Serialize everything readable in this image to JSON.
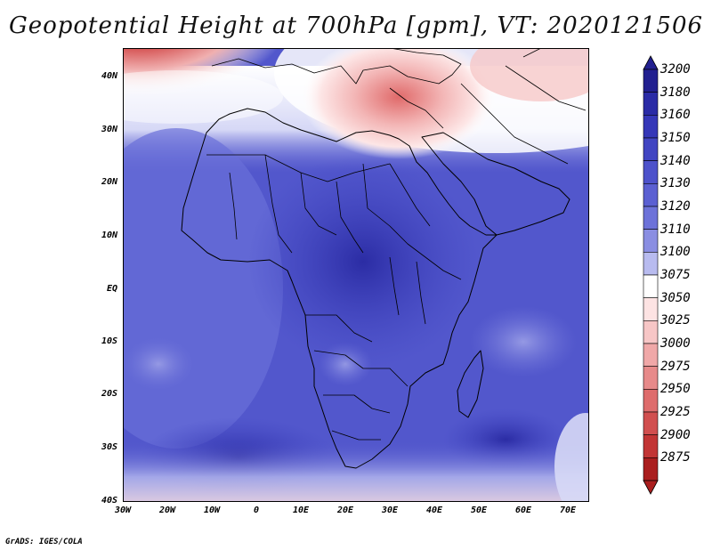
{
  "title": "Geopotential Height at 700hPa [gpm], VT: 2020121506",
  "footer": "GrADS: IGES/COLA",
  "map": {
    "variable": "Geopotential Height",
    "level": "700hPa",
    "units": "gpm",
    "valid_time": "2020121506",
    "lon_range": [
      -30,
      75
    ],
    "lat_range": [
      -40,
      45
    ],
    "x_ticks": [
      "30W",
      "20W",
      "10W",
      "0",
      "10E",
      "20E",
      "30E",
      "40E",
      "50E",
      "60E",
      "70E"
    ],
    "y_ticks": [
      "40N",
      "30N",
      "20N",
      "10N",
      "EQ",
      "10S",
      "20S",
      "30S",
      "40S"
    ]
  },
  "colorbar": {
    "labels": [
      "3200",
      "3180",
      "3160",
      "3150",
      "3140",
      "3130",
      "3120",
      "3110",
      "3100",
      "3075",
      "3050",
      "3025",
      "3000",
      "2975",
      "2950",
      "2925",
      "2900",
      "2875"
    ],
    "colors": [
      "#222090",
      "#2a2ba6",
      "#3537b8",
      "#4145c2",
      "#4d52cb",
      "#5b60d2",
      "#6d72d9",
      "#8a8ee2",
      "#b8bbef",
      "#ffffff",
      "#fde3e3",
      "#f7c6c6",
      "#f0a8a8",
      "#e78a8a",
      "#de6c6c",
      "#d14f4f",
      "#c23535",
      "#aa1e1e"
    ]
  }
}
